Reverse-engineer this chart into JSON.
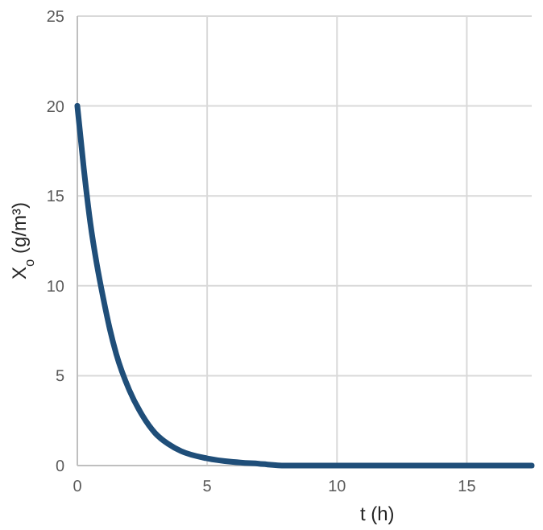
{
  "chart_data": {
    "type": "line",
    "xlabel": "t (h)",
    "ylabel": "X$_{o}$ (g/m³)",
    "x": [
      0,
      0.25,
      0.5,
      0.75,
      1,
      1.25,
      1.5,
      2,
      2.5,
      3,
      3.5,
      4,
      5,
      6,
      7,
      8,
      10,
      12,
      15,
      17.5
    ],
    "series": [
      {
        "color": "#1f4e79",
        "values": [
          20,
          16.5,
          13.5,
          11.2,
          9.3,
          7.6,
          6.2,
          4.2,
          2.8,
          1.8,
          1.2,
          0.8,
          0.4,
          0.2,
          0.1,
          0,
          0,
          0,
          0,
          0
        ]
      }
    ],
    "xlim": [
      0,
      17.5
    ],
    "xticks": [
      0,
      5,
      10,
      15
    ],
    "ylim": [
      0,
      25
    ],
    "yticks": [
      0,
      5,
      10,
      15,
      20,
      25
    ],
    "grid": true,
    "line_style": "solid"
  }
}
